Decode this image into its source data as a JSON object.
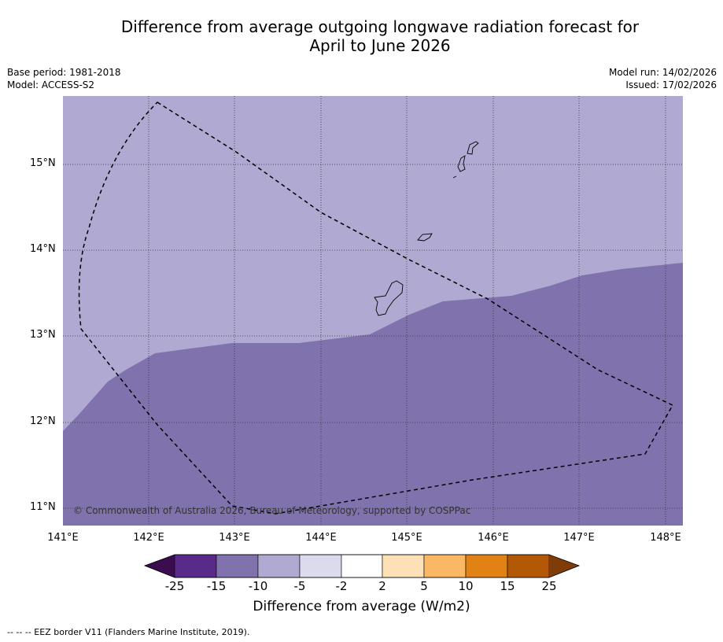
{
  "title_line1": "Difference from average outgoing longwave radiation forecast for",
  "title_line2": "April to June 2026",
  "meta_left": {
    "base_period": "Base period: 1981-2018",
    "model": "Model: ACCESS-S2"
  },
  "meta_right": {
    "model_run": "Model run: 14/02/2026",
    "issued": "Issued: 17/02/2026"
  },
  "latitude_labels": [
    "15°N",
    "14°N",
    "13°N",
    "12°N",
    "11°N"
  ],
  "longitude_labels": [
    "141°E",
    "142°E",
    "143°E",
    "144°E",
    "145°E",
    "146°E",
    "147°E",
    "148°E"
  ],
  "copyright": "© Commonwealth of Australia 2026, Bureau of Meteorology, supported by COSPPac",
  "colorbar": {
    "ticks": [
      "-25",
      "-15",
      "-10",
      "-5",
      "-2",
      "2",
      "5",
      "10",
      "15",
      "25"
    ],
    "colors": [
      "#3b0c4e",
      "#5a2a8a",
      "#7f72ad",
      "#b0a9d1",
      "#dcdbee",
      "#ffffff",
      "#fde0b6",
      "#fbb864",
      "#e08214",
      "#b35806",
      "#7f3b08"
    ],
    "title": "Difference from average (W/m2)"
  },
  "map_colors": {
    "light": "#b0a9d1",
    "dark": "#7f72ad"
  },
  "footer": "--  --  -- EEZ border V11 (Flanders Marine Institute, 2019)."
}
